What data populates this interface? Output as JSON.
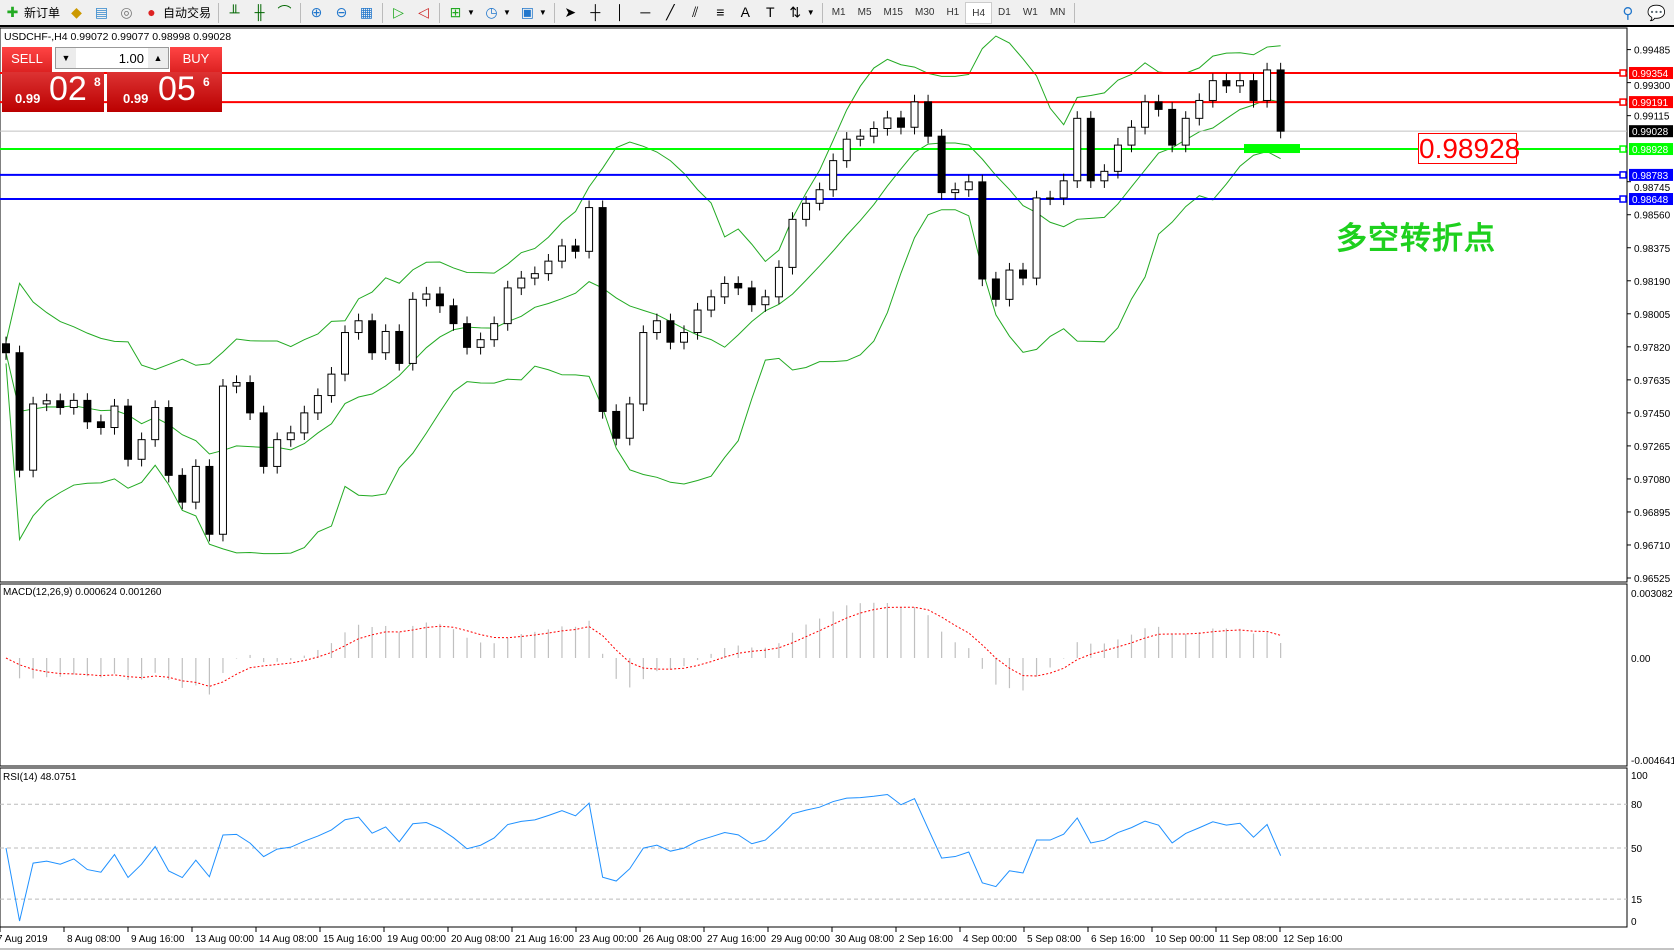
{
  "toolbar": {
    "new_order": "新订单",
    "auto_trading": "自动交易",
    "timeframes": [
      "M1",
      "M5",
      "M15",
      "M30",
      "H1",
      "H4",
      "D1",
      "W1",
      "MN"
    ],
    "active_timeframe": "H4"
  },
  "chart": {
    "title": "USDCHF-,H4  0.99072 0.99077 0.98998 0.99028"
  },
  "trade_panel": {
    "sell_label": "SELL",
    "buy_label": "BUY",
    "lot": "1.00",
    "sell_small": "0.99",
    "sell_big": "02",
    "sell_tiny": "8",
    "buy_small": "0.99",
    "buy_big": "05",
    "buy_tiny": "6"
  },
  "annotation": {
    "price_label": "0.98928",
    "text": "多空转折点",
    "text_color": "#1ed01e"
  },
  "indicators": {
    "macd_label": "MACD(12,26,9) 0.000624 0.001260",
    "rsi_label": "RSI(14) 48.0751",
    "macd_ticks": [
      "0.003082",
      "0.00",
      "-0.004641"
    ],
    "rsi_ticks": [
      "100",
      "80",
      "50",
      "15",
      "0"
    ]
  },
  "chart_data": {
    "type": "candlestick",
    "symbol": "USDCHF-",
    "timeframe": "H4",
    "ylim": [
      0.96525,
      0.99485
    ],
    "price_ticks": [
      "0.99485",
      "0.99300",
      "0.99115",
      "0.98745",
      "0.98560",
      "0.98375",
      "0.98190",
      "0.98005",
      "0.97820",
      "0.97635",
      "0.97450",
      "0.97265",
      "0.97080",
      "0.96895",
      "0.96710",
      "0.96525"
    ],
    "time_labels": [
      "7 Aug 2019",
      "8 Aug 08:00",
      "9 Aug 16:00",
      "13 Aug 00:00",
      "14 Aug 08:00",
      "15 Aug 16:00",
      "19 Aug 00:00",
      "20 Aug 08:00",
      "21 Aug 16:00",
      "23 Aug 00:00",
      "26 Aug 08:00",
      "27 Aug 16:00",
      "29 Aug 00:00",
      "30 Aug 08:00",
      "2 Sep 16:00",
      "4 Sep 00:00",
      "5 Sep 08:00",
      "6 Sep 16:00",
      "10 Sep 00:00",
      "11 Sep 08:00",
      "12 Sep 16:00"
    ],
    "closes": [
      0.97787,
      0.97129,
      0.975,
      0.97518,
      0.9748,
      0.9752,
      0.974,
      0.97368,
      0.97488,
      0.9719,
      0.973,
      0.9748,
      0.971,
      0.9695,
      0.9715,
      0.9677,
      0.976,
      0.9762,
      0.9745,
      0.9715,
      0.973,
      0.97338,
      0.9745,
      0.97547,
      0.97667,
      0.979,
      0.97966,
      0.97787,
      0.97906,
      0.97727,
      0.98086,
      0.98116,
      0.9805,
      0.9795,
      0.97817,
      0.9786,
      0.9795,
      0.9815,
      0.98205,
      0.9823,
      0.983,
      0.98385,
      0.98355,
      0.986,
      0.97458,
      0.97308,
      0.975,
      0.979,
      0.97966,
      0.97846,
      0.979,
      0.98026,
      0.981,
      0.98175,
      0.9815,
      0.98056,
      0.981,
      0.98265,
      0.98534,
      0.98624,
      0.987,
      0.98863,
      0.98983,
      0.99,
      0.99043,
      0.99102,
      0.9905,
      0.99192,
      0.99,
      0.98684,
      0.987,
      0.98744,
      0.982,
      0.98086,
      0.9825,
      0.98205,
      0.98654,
      0.98654,
      0.9875,
      0.991,
      0.9875,
      0.98803,
      0.9895,
      0.9905,
      0.99192,
      0.9915,
      0.9895,
      0.991,
      0.992,
      0.99311,
      0.99282,
      0.99311,
      0.992,
      0.99371,
      0.99028
    ],
    "horizontal_lines": [
      {
        "price": "0.99354",
        "color": "#ff0000"
      },
      {
        "price": "0.99191",
        "color": "#ff0000"
      },
      {
        "price": "0.99028",
        "color": "#000000",
        "kind": "bid"
      },
      {
        "price": "0.98928",
        "color": "#00ff00"
      },
      {
        "price": "0.98783",
        "color": "#0000ff"
      },
      {
        "price": "0.98648",
        "color": "#0000ff"
      }
    ],
    "indicators": [
      "Bollinger Bands",
      "MACD(12,26,9)",
      "RSI(14)"
    ],
    "colors": {
      "bands": "#22aa22",
      "macd_hist": "#c0c0c0",
      "macd_signal": "#ff0000",
      "rsi": "#1e90ff"
    }
  }
}
